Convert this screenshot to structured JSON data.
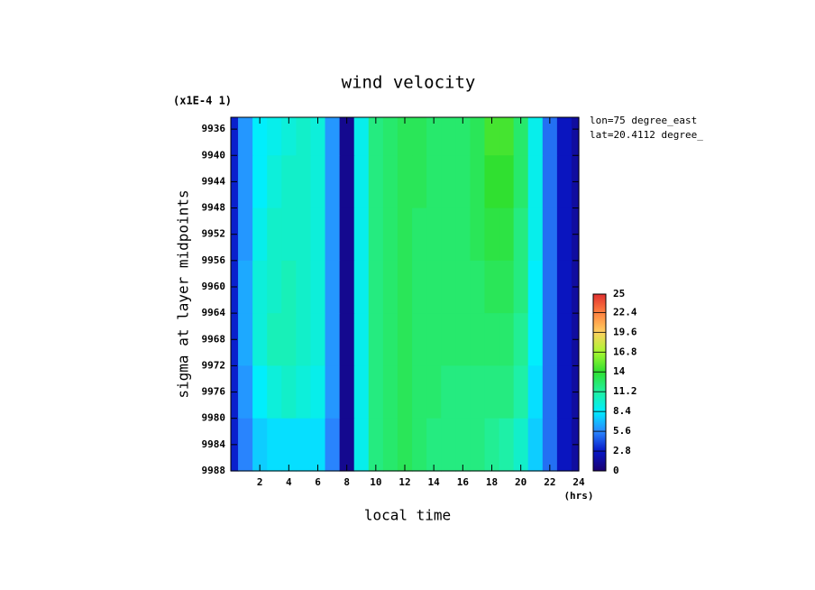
{
  "chart_data": {
    "type": "heatmap",
    "title": "wind velocity",
    "scale_label": "(x1E-4 1)",
    "annotations": [
      "lon=75 degree_east",
      "lat=20.4112 degree_"
    ],
    "xlabel": "local time",
    "xunit": "(hrs)",
    "ylabel": "sigma at layer midpoints",
    "x": [
      0,
      1,
      2,
      3,
      4,
      5,
      6,
      7,
      8,
      9,
      10,
      11,
      12,
      13,
      14,
      15,
      16,
      17,
      18,
      19,
      20,
      21,
      22,
      23,
      24
    ],
    "y": [
      9936,
      9944,
      9952,
      9960,
      9968,
      9976,
      9984
    ],
    "z": [
      [
        3,
        6,
        8.5,
        9,
        9.5,
        10,
        9.5,
        6,
        1,
        9,
        12,
        12.5,
        13,
        13,
        12.5,
        12.5,
        12.5,
        13,
        14.5,
        14.5,
        12.5,
        9,
        5,
        2.5,
        1.5
      ],
      [
        3,
        6,
        8.5,
        9.5,
        10,
        10,
        9.5,
        6,
        1,
        9,
        12,
        12.5,
        13,
        13,
        12.5,
        12.5,
        12.5,
        13,
        14,
        14,
        12.5,
        9,
        5,
        2.5,
        1.5
      ],
      [
        3,
        6,
        9,
        10,
        10,
        10,
        9.5,
        6,
        1,
        9,
        12,
        12.5,
        13,
        12.5,
        12.5,
        12.5,
        12.5,
        13,
        13.5,
        13.5,
        12,
        9,
        5,
        2.5,
        1.5
      ],
      [
        3,
        6.5,
        9.5,
        10,
        10.5,
        10,
        9.5,
        6,
        1,
        9,
        12,
        12.5,
        13,
        12.5,
        12.5,
        12.5,
        12.5,
        12.5,
        13,
        13,
        12,
        8.5,
        5,
        2.5,
        1.5
      ],
      [
        3,
        6.5,
        9.5,
        10.5,
        10.5,
        10,
        9.5,
        6,
        1,
        9,
        12,
        12.5,
        13,
        12.5,
        12.5,
        12.5,
        12.5,
        12.5,
        12.5,
        12.5,
        11.5,
        8.5,
        5,
        2.5,
        1.5
      ],
      [
        3,
        6,
        8.5,
        9.5,
        10,
        9.5,
        9,
        6,
        1,
        9,
        12,
        12.5,
        13,
        12.5,
        12.5,
        12,
        12,
        12,
        12,
        12,
        11,
        8,
        5,
        2.5,
        1.5
      ],
      [
        3,
        5.5,
        7.5,
        8,
        8,
        8,
        8,
        5.5,
        1,
        9,
        12,
        12.5,
        13,
        12.5,
        12,
        12,
        12,
        12,
        11.5,
        11,
        10,
        7.5,
        5,
        2.5,
        1.5
      ]
    ],
    "xlim": [
      0,
      24
    ],
    "xticks": [
      2,
      4,
      6,
      8,
      10,
      12,
      14,
      16,
      18,
      20,
      22,
      24
    ],
    "ylim": [
      9934.2,
      9988
    ],
    "yticks": [
      9936,
      9940,
      9944,
      9948,
      9952,
      9956,
      9960,
      9964,
      9968,
      9972,
      9976,
      9980,
      9984,
      9988
    ],
    "clim": [
      0,
      25
    ],
    "cticks": [
      0,
      2.8,
      5.6,
      8.4,
      11.2,
      14,
      16.8,
      19.6,
      22.4,
      25
    ],
    "colormap": [
      "#1a0070",
      "#0818c8",
      "#2a88ff",
      "#00eeff",
      "#20f0a0",
      "#30e030",
      "#a8f830",
      "#ffd060",
      "#ff8040",
      "#e03030"
    ]
  }
}
